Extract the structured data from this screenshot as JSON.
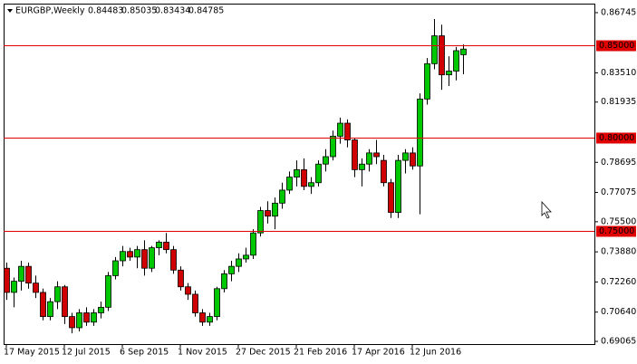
{
  "chart_data": {
    "type": "candlestick",
    "title": "EURGBP,Weekly",
    "categories": [
      "17 May 2015",
      null,
      null,
      null,
      null,
      null,
      null,
      null,
      "12 Jul 2015",
      null,
      null,
      null,
      null,
      null,
      null,
      null,
      "6 Sep 2015",
      null,
      null,
      null,
      null,
      null,
      null,
      null,
      "1 Nov 2015",
      null,
      null,
      null,
      null,
      null,
      null,
      null,
      "27 Dec 2015",
      null,
      null,
      null,
      null,
      null,
      null,
      null,
      "21 Feb 2016",
      null,
      null,
      null,
      null,
      null,
      null,
      null,
      "17 Apr 2016",
      null,
      null,
      null,
      null,
      null,
      null,
      null,
      "12 Jun 2016",
      null,
      null,
      null,
      null,
      null,
      null,
      null
    ],
    "open": [
      0.73,
      0.717,
      0.723,
      0.731,
      0.722,
      0.717,
      0.704,
      0.712,
      0.72,
      0.704,
      0.698,
      0.706,
      0.701,
      0.706,
      0.709,
      0.726,
      0.734,
      0.739,
      0.736,
      0.74,
      0.73,
      0.741,
      0.744,
      0.74,
      0.729,
      0.72,
      0.716,
      0.706,
      0.701,
      0.704,
      0.719,
      0.727,
      0.731,
      0.735,
      0.737,
      0.749,
      0.761,
      0.758,
      0.765,
      0.772,
      0.779,
      0.783,
      0.774,
      0.776,
      0.786,
      0.79,
      0.801,
      0.808,
      0.799,
      0.783,
      0.786,
      0.792,
      0.788,
      0.776,
      0.76,
      0.788,
      0.792,
      0.785,
      0.821,
      0.84,
      0.855,
      0.834,
      0.836,
      0.84483
    ],
    "high": [
      0.733,
      0.725,
      0.734,
      0.733,
      0.726,
      0.719,
      0.714,
      0.723,
      0.721,
      0.706,
      0.708,
      0.709,
      0.708,
      0.712,
      0.728,
      0.736,
      0.742,
      0.741,
      0.742,
      0.745,
      0.742,
      0.745,
      0.749,
      0.742,
      0.731,
      0.722,
      0.718,
      0.708,
      0.706,
      0.72,
      0.729,
      0.734,
      0.738,
      0.741,
      0.751,
      0.763,
      0.766,
      0.768,
      0.776,
      0.782,
      0.788,
      0.789,
      0.779,
      0.788,
      0.794,
      0.804,
      0.811,
      0.81,
      0.8,
      0.789,
      0.794,
      0.799,
      0.791,
      0.778,
      0.791,
      0.794,
      0.795,
      0.824,
      0.843,
      0.864,
      0.861,
      0.844,
      0.849,
      0.85035
    ],
    "low": [
      0.713,
      0.709,
      0.718,
      0.719,
      0.714,
      0.702,
      0.702,
      0.708,
      0.7,
      0.695,
      0.696,
      0.699,
      0.699,
      0.703,
      0.707,
      0.724,
      0.731,
      0.734,
      0.73,
      0.726,
      0.728,
      0.737,
      0.738,
      0.727,
      0.718,
      0.713,
      0.704,
      0.699,
      0.699,
      0.702,
      0.717,
      0.723,
      0.728,
      0.733,
      0.735,
      0.747,
      0.754,
      0.751,
      0.762,
      0.77,
      0.774,
      0.772,
      0.77,
      0.774,
      0.782,
      0.788,
      0.797,
      0.795,
      0.779,
      0.774,
      0.782,
      0.786,
      0.774,
      0.757,
      0.757,
      0.781,
      0.783,
      0.759,
      0.818,
      0.837,
      0.826,
      0.828,
      0.831,
      0.83434
    ],
    "close": [
      0.717,
      0.723,
      0.731,
      0.722,
      0.717,
      0.704,
      0.712,
      0.72,
      0.704,
      0.698,
      0.706,
      0.701,
      0.706,
      0.709,
      0.726,
      0.734,
      0.739,
      0.736,
      0.74,
      0.73,
      0.741,
      0.744,
      0.74,
      0.729,
      0.72,
      0.716,
      0.706,
      0.701,
      0.704,
      0.719,
      0.727,
      0.731,
      0.735,
      0.737,
      0.749,
      0.761,
      0.758,
      0.765,
      0.772,
      0.779,
      0.783,
      0.774,
      0.776,
      0.786,
      0.79,
      0.801,
      0.808,
      0.799,
      0.783,
      0.786,
      0.792,
      0.79,
      0.776,
      0.76,
      0.788,
      0.792,
      0.785,
      0.821,
      0.84,
      0.855,
      0.834,
      0.836,
      0.847,
      0.84785
    ],
    "up_color": "#00c800",
    "down_color": "#d00000",
    "ylim": [
      0.6892,
      0.8723
    ],
    "yticks": [
      0.86745,
      {
        "value": 0.8351,
        "label": "0.83510"
      },
      0.81935,
      0.78695,
      0.77075,
      {
        "value": 0.755,
        "label": "0.75500"
      },
      {
        "value": 0.7388,
        "label": "0.73880"
      },
      {
        "value": 0.7226,
        "label": "0.72260"
      },
      {
        "value": 0.7064,
        "label": "0.70640"
      },
      0.69065
    ],
    "levels": [
      {
        "value": 0.85,
        "label": "0.85000"
      },
      {
        "value": 0.8,
        "label": "0.80000"
      },
      {
        "value": 0.75,
        "label": "0.75000"
      }
    ],
    "level_color": "#e00000"
  }
}
